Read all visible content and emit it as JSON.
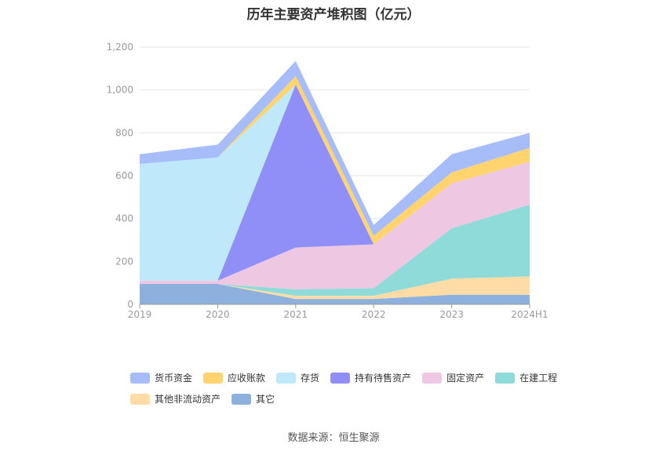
{
  "chart_data": {
    "type": "area",
    "stacked": true,
    "title": "历年主要资产堆积图（亿元）",
    "categories": [
      "2019",
      "2020",
      "2021",
      "2022",
      "2023",
      "2024H1"
    ],
    "ylim": [
      0,
      1200
    ],
    "yticks": [
      "0",
      "200",
      "400",
      "600",
      "800",
      "1,000",
      "1,200"
    ],
    "grid": true,
    "legend_position": "bottom",
    "series": [
      {
        "name": "其它",
        "color": "#8eb0dc",
        "values": [
          95,
          95,
          25,
          25,
          45,
          45
        ]
      },
      {
        "name": "其他非流动资产",
        "color": "#ffdca6",
        "values": [
          0,
          0,
          15,
          15,
          75,
          85
        ]
      },
      {
        "name": "在建工程",
        "color": "#8edbd9",
        "values": [
          0,
          0,
          30,
          35,
          235,
          335
        ]
      },
      {
        "name": "固定资产",
        "color": "#eec8e3",
        "values": [
          15,
          15,
          195,
          205,
          210,
          200
        ]
      },
      {
        "name": "持有待售资产",
        "color": "#8f8ff7",
        "values": [
          0,
          0,
          760,
          0,
          0,
          0
        ]
      },
      {
        "name": "存货",
        "color": "#bfe8fb",
        "values": [
          545,
          575,
          0,
          0,
          0,
          0
        ]
      },
      {
        "name": "应收账款",
        "color": "#ffd36e",
        "values": [
          0,
          0,
          40,
          40,
          50,
          65
        ]
      },
      {
        "name": "货币资金",
        "color": "#a6bdfa",
        "values": [
          45,
          60,
          70,
          50,
          85,
          70
        ]
      }
    ],
    "legend_order": [
      "货币资金",
      "应收账款",
      "存货",
      "持有待售资产",
      "固定资产",
      "在建工程",
      "其他非流动资产",
      "其它"
    ]
  },
  "source": "数据来源：恒生聚源"
}
